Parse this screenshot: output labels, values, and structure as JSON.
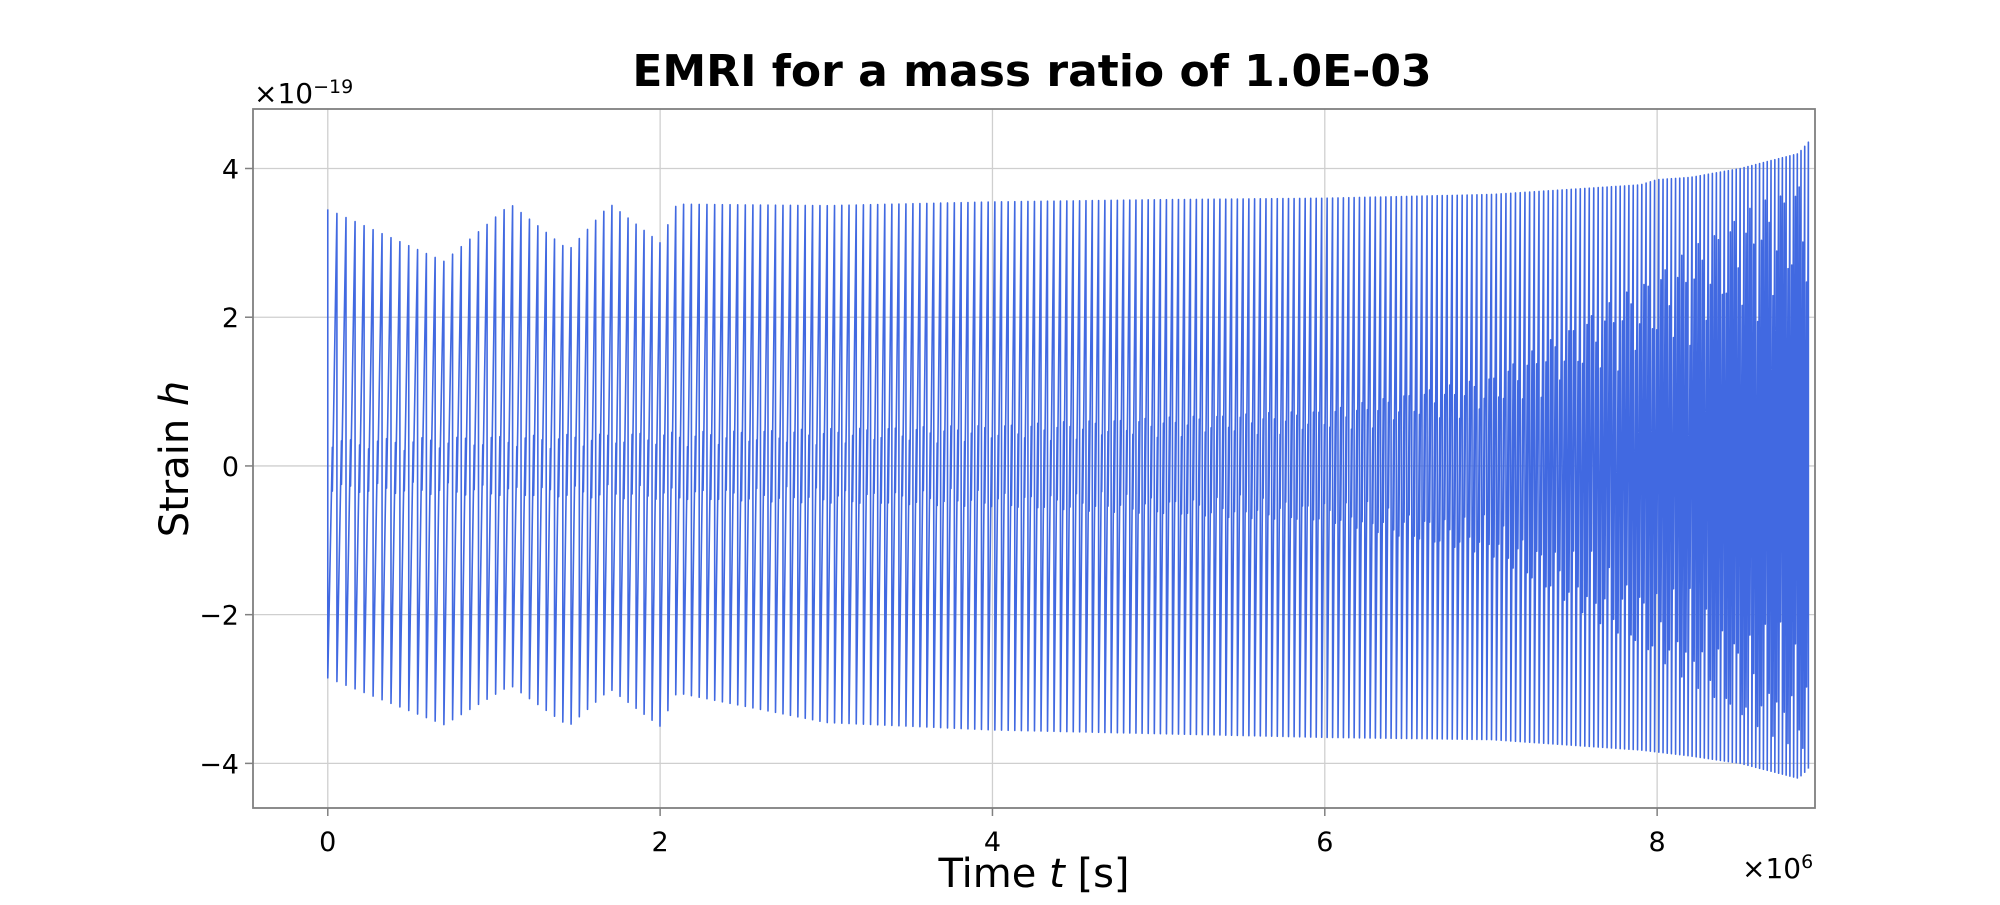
{
  "chart_data": {
    "type": "line",
    "title": "EMRI for a mass ratio of 1.0E-03",
    "xlabel": {
      "text": "Time ",
      "var": "t",
      "unit": " [s]"
    },
    "ylabel": {
      "text": "Strain ",
      "var": "h"
    },
    "x_multiplier": {
      "base": "×10",
      "exp": "6"
    },
    "y_multiplier": {
      "base": "×10",
      "exp": "−19"
    },
    "xlim": [
      -0.45,
      8.95
    ],
    "ylim": [
      -4.6,
      4.8
    ],
    "xticks": [
      0,
      2,
      4,
      6,
      8
    ],
    "xtick_labels": [
      "0",
      "2",
      "4",
      "6",
      "8"
    ],
    "yticks": [
      -4,
      -2,
      0,
      2,
      4
    ],
    "ytick_labels": [
      "−4",
      "−2",
      "0",
      "2",
      "4"
    ],
    "grid": true,
    "series": [
      {
        "color": "#4169e1",
        "x_range": [
          0,
          8.92
        ],
        "amplitude_upper": [
          [
            0,
            3.45
          ],
          [
            0.7,
            2.75
          ],
          [
            1.1,
            3.52
          ],
          [
            1.45,
            2.9
          ],
          [
            1.7,
            3.52
          ],
          [
            2.0,
            3.0
          ],
          [
            2.1,
            3.52
          ],
          [
            3.0,
            3.5
          ],
          [
            4.0,
            3.55
          ],
          [
            5.0,
            3.58
          ],
          [
            6.0,
            3.6
          ],
          [
            7.0,
            3.65
          ],
          [
            7.9,
            3.78
          ],
          [
            8.0,
            3.85
          ],
          [
            8.2,
            3.88
          ],
          [
            8.5,
            4.0
          ],
          [
            8.85,
            4.2
          ],
          [
            8.92,
            4.38
          ]
        ],
        "amplitude_lower": [
          [
            0,
            -2.85
          ],
          [
            0.7,
            -3.48
          ],
          [
            1.1,
            -2.95
          ],
          [
            1.45,
            -3.5
          ],
          [
            1.7,
            -3.0
          ],
          [
            2.0,
            -3.5
          ],
          [
            2.1,
            -3.05
          ],
          [
            3.0,
            -3.45
          ],
          [
            4.0,
            -3.55
          ],
          [
            5.0,
            -3.6
          ],
          [
            6.0,
            -3.65
          ],
          [
            7.0,
            -3.68
          ],
          [
            7.9,
            -3.82
          ],
          [
            8.2,
            -3.9
          ],
          [
            8.5,
            -4.0
          ],
          [
            8.85,
            -4.2
          ],
          [
            8.92,
            -4.05
          ]
        ],
        "inner_band": [
          [
            0,
            0.35
          ],
          [
            2.0,
            0.45
          ],
          [
            4.0,
            0.55
          ],
          [
            6.0,
            0.75
          ],
          [
            7.0,
            1.2
          ],
          [
            8.0,
            2.6
          ],
          [
            8.5,
            3.4
          ],
          [
            8.92,
            3.9
          ]
        ],
        "period_start": 0.055,
        "period_end": 0.022
      }
    ]
  }
}
